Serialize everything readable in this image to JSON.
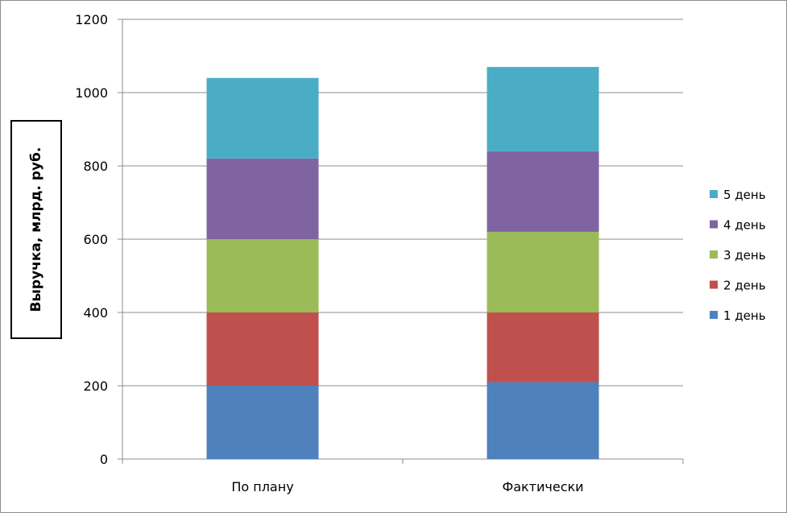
{
  "chart_data": {
    "type": "bar",
    "stacked": true,
    "title": "",
    "xlabel": "",
    "ylabel": "Выручка, млрд. руб.",
    "ylim": [
      0,
      1200
    ],
    "yticks": [
      0,
      200,
      400,
      600,
      800,
      1000,
      1200
    ],
    "grid": true,
    "legend_position": "right",
    "categories": [
      "По плану",
      "Фактически"
    ],
    "series": [
      {
        "name": "1 день",
        "color": "#4f81bd",
        "values": [
          200,
          210
        ]
      },
      {
        "name": "2 день",
        "color": "#c0504d",
        "values": [
          200,
          190
        ]
      },
      {
        "name": "3 день",
        "color": "#9bbb59",
        "values": [
          200,
          220
        ]
      },
      {
        "name": "4 день",
        "color": "#8064a2",
        "values": [
          220,
          220
        ]
      },
      {
        "name": "5 день",
        "color": "#4bacc6",
        "values": [
          220,
          230
        ]
      }
    ]
  }
}
